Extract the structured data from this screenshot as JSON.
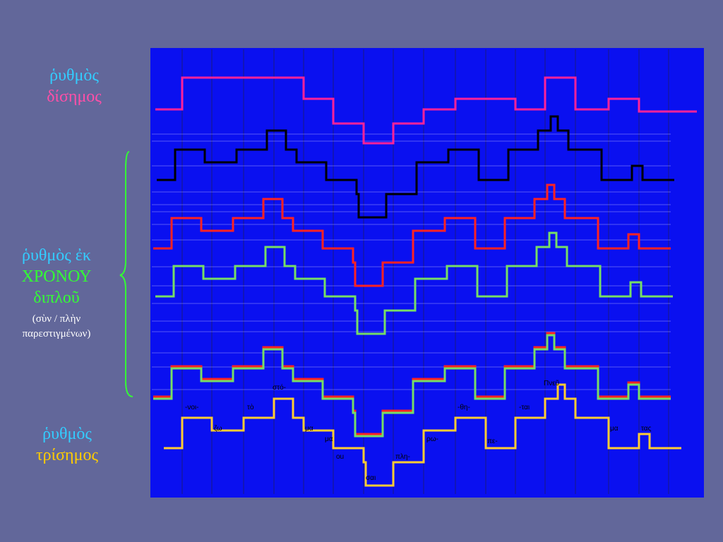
{
  "labels": {
    "disemos": {
      "line1": "ῥυθμὸς",
      "line2": "δίσημος"
    },
    "diplou": {
      "line1": "ῥυθμὸς ἐκ",
      "line2": "ΧΡΟΝΟΥ",
      "line3": "διπλοῦ",
      "note1": "(σὺν / πλὴν",
      "note2": "παρεστιγμένων)"
    },
    "trisemos": {
      "line1": "ῥυθμὸς",
      "line2": "τρίσημος"
    }
  },
  "figure": {
    "syllables": [
      "-νοι-",
      "ζω",
      "τὸ",
      "στό-",
      "μα",
      "μα",
      "ou",
      "σαι",
      "πλη-",
      "ρω-",
      "-θη-",
      "πε-",
      "-ται",
      "Πνεῦ",
      "μα",
      "τας"
    ]
  }
}
